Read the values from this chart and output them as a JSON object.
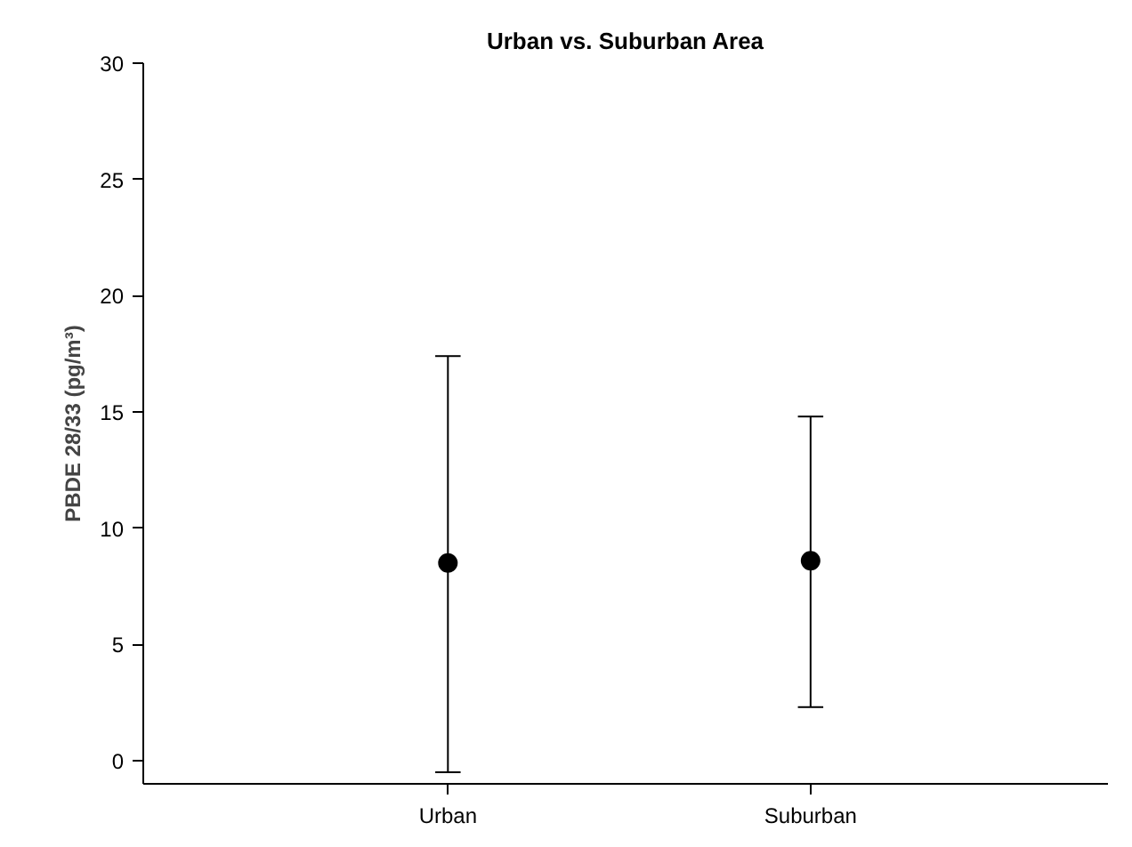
{
  "chart_data": {
    "type": "scatter",
    "title": "Urban vs. Suburban Area",
    "ylabel": "PBDE 28/33 (pg/m³)",
    "categories": [
      "Urban",
      "Suburban"
    ],
    "series": [
      {
        "color": "#000000",
        "values": [
          8.5,
          8.6
        ],
        "errors": [
          [
            -0.5,
            17.4
          ],
          [
            2.3,
            14.8
          ]
        ]
      }
    ],
    "ylim": [
      -1,
      30
    ],
    "yticks": [
      0,
      5,
      10,
      15,
      20,
      25,
      30
    ],
    "marker": "circle",
    "grid": false
  }
}
